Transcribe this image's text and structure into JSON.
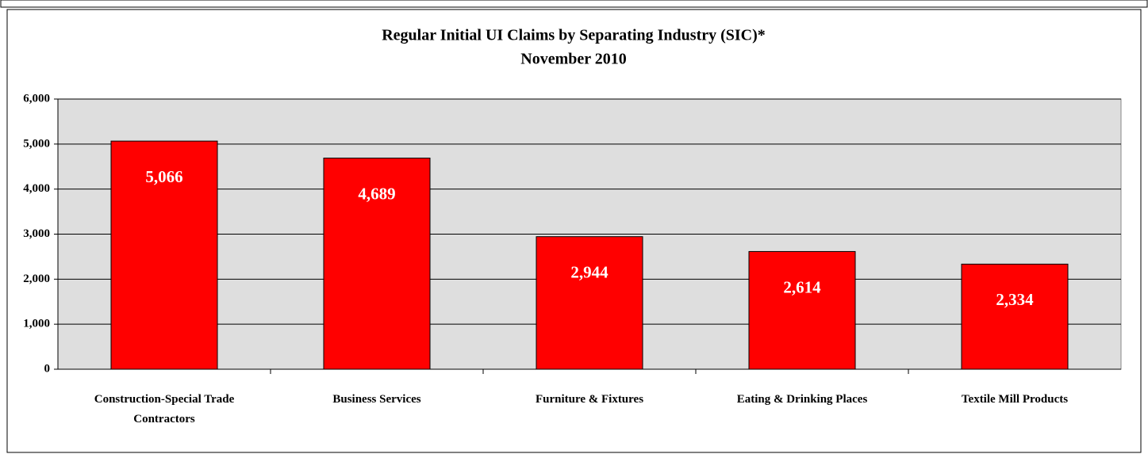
{
  "chart_data": {
    "type": "bar",
    "title": "Regular Initial UI Claims by Separating Industry (SIC)*",
    "subtitle": "November 2010",
    "categories": [
      "Construction-Special Trade Contractors",
      "Business Services",
      "Furniture & Fixtures",
      "Eating & Drinking Places",
      "Textile Mill Products"
    ],
    "values": [
      5066,
      4689,
      2944,
      2614,
      2334
    ],
    "value_labels": [
      "5,066",
      "4,689",
      "2,944",
      "2,614",
      "2,334"
    ],
    "color": "#ff0000",
    "ylim": [
      0,
      6000
    ],
    "yticks": [
      0,
      {
        "value": 1000,
        "label": "1,000"
      },
      {
        "value": 2000,
        "label": "2,000"
      },
      {
        "value": 3000,
        "label": "3,000"
      },
      {
        "value": 4000,
        "label": "4,000"
      },
      {
        "value": 5000,
        "label": "5,000"
      },
      {
        "value": 6000,
        "label": "6,000"
      }
    ],
    "grid": true
  }
}
